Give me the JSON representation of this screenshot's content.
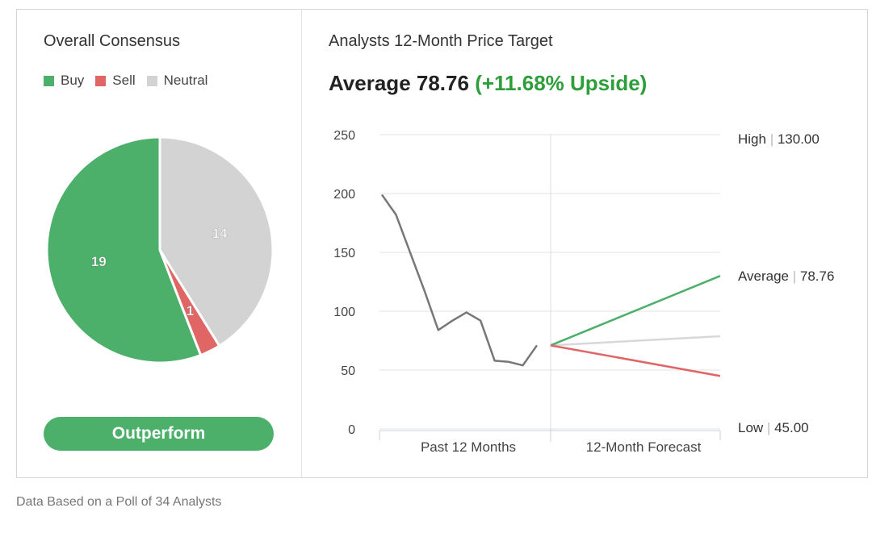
{
  "consensus": {
    "title": "Overall Consensus",
    "legend": [
      {
        "label": "Buy",
        "color": "#4caf6a"
      },
      {
        "label": "Sell",
        "color": "#e06666"
      },
      {
        "label": "Neutral",
        "color": "#d3d3d3"
      }
    ],
    "rating_label": "Outperform",
    "rating_color": "#4caf6a"
  },
  "price_target": {
    "title": "Analysts 12-Month Price Target",
    "average_prefix": "Average 78.76",
    "upside_text": "(+11.68% Upside)"
  },
  "footer": "Data Based on a Poll of 34 Analysts",
  "chart_data": [
    {
      "type": "pie",
      "categories": [
        "Buy",
        "Sell",
        "Neutral"
      ],
      "values": [
        19,
        1,
        14
      ],
      "labels": [
        "19",
        "1",
        "14"
      ],
      "colors": [
        "#4caf6a",
        "#e06666",
        "#d3d3d3"
      ]
    },
    {
      "type": "line",
      "ylim": [
        0,
        250
      ],
      "yticks": [
        "250",
        "200",
        "150",
        "100",
        "50",
        "0"
      ],
      "ytick_values": [
        250,
        200,
        150,
        100,
        50,
        0
      ],
      "xlabels": [
        "Past 12 Months",
        "12-Month Forecast"
      ],
      "history": [
        199,
        182,
        150,
        118,
        84,
        92,
        99,
        92,
        58,
        57,
        54,
        71
      ],
      "current": 71,
      "forecast": [
        {
          "name": "High",
          "value_text": "130.00",
          "end": 130,
          "color": "#4caf6a"
        },
        {
          "name": "Average",
          "value_text": "78.76",
          "end": 78.76,
          "color": "#d8d8d8"
        },
        {
          "name": "Low",
          "value_text": "45.00",
          "end": 45,
          "color": "#e06666"
        }
      ],
      "history_color": "#777777"
    }
  ]
}
